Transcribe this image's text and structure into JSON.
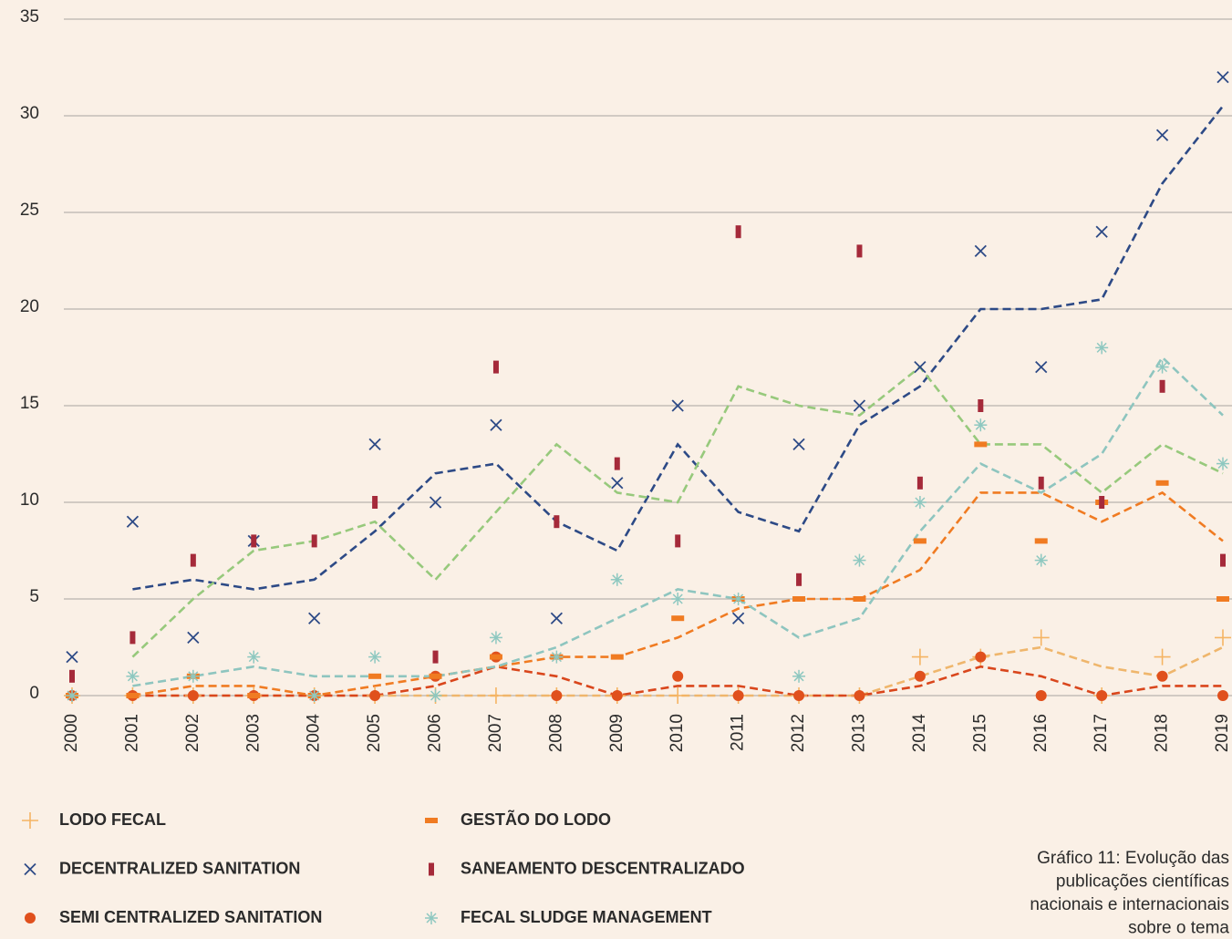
{
  "chart_data": {
    "type": "scatter",
    "categories": [
      "2000",
      "2001",
      "2002",
      "2003",
      "2004",
      "2005",
      "2006",
      "2007",
      "2008",
      "2009",
      "2010",
      "2011",
      "2012",
      "2013",
      "2014",
      "2015",
      "2016",
      "2017",
      "2018",
      "2019"
    ],
    "ylim": [
      0,
      35
    ],
    "yticks": [
      0,
      5,
      10,
      15,
      20,
      25,
      30,
      35
    ],
    "grid": true,
    "trendline": {
      "type": "moving_average",
      "period": 2
    },
    "series": [
      {
        "name": "LODO FECAL",
        "marker": "plus",
        "color": "#f5b463",
        "trend_color": "#efb66c",
        "values": [
          0,
          0,
          0,
          0,
          0,
          0,
          0,
          0,
          0,
          0,
          0,
          0,
          0,
          0,
          2,
          2,
          3,
          0,
          2,
          3
        ]
      },
      {
        "name": "DECENTRALIZED SANITATION",
        "marker": "x",
        "color": "#2d4a86",
        "trend_color": "#2d4a86",
        "values": [
          2,
          9,
          3,
          8,
          4,
          13,
          10,
          14,
          4,
          11,
          15,
          4,
          13,
          15,
          17,
          23,
          17,
          24,
          29,
          32
        ]
      },
      {
        "name": "SEMI CENTRALIZED SANITATION",
        "marker": "dot",
        "color": "#e0501d",
        "trend_color": "#d9461c",
        "values": [
          0,
          0,
          0,
          0,
          0,
          0,
          1,
          2,
          0,
          0,
          1,
          0,
          0,
          0,
          1,
          2,
          0,
          0,
          1,
          0
        ]
      },
      {
        "name": "GESTÃO DO LODO",
        "marker": "dash",
        "color": "#f07b22",
        "trend_color": "#f07b22",
        "values": [
          0,
          0,
          1,
          0,
          0,
          1,
          1,
          2,
          2,
          2,
          4,
          5,
          5,
          5,
          8,
          13,
          8,
          10,
          11,
          5
        ]
      },
      {
        "name": "SANEAMENTO DESCENTRALIZADO",
        "marker": "bar",
        "color": "#a52a3a",
        "trend_color": "#97c97c",
        "values": [
          1,
          3,
          7,
          8,
          8,
          10,
          2,
          17,
          9,
          12,
          8,
          24,
          6,
          23,
          11,
          15,
          11,
          10,
          16,
          7
        ]
      },
      {
        "name": "FECAL SLUDGE MANAGEMENT",
        "marker": "asterisk",
        "color": "#8ec8c0",
        "trend_color": "#8ec5bf",
        "values": [
          0,
          1,
          1,
          2,
          0,
          2,
          0,
          3,
          2,
          6,
          5,
          5,
          1,
          7,
          10,
          14,
          7,
          18,
          17,
          12
        ]
      }
    ],
    "caption_lines": [
      "Gráfico 11: Evolução das",
      "publicações científicas",
      "nacionais e internacionais",
      "sobre o tema"
    ]
  }
}
